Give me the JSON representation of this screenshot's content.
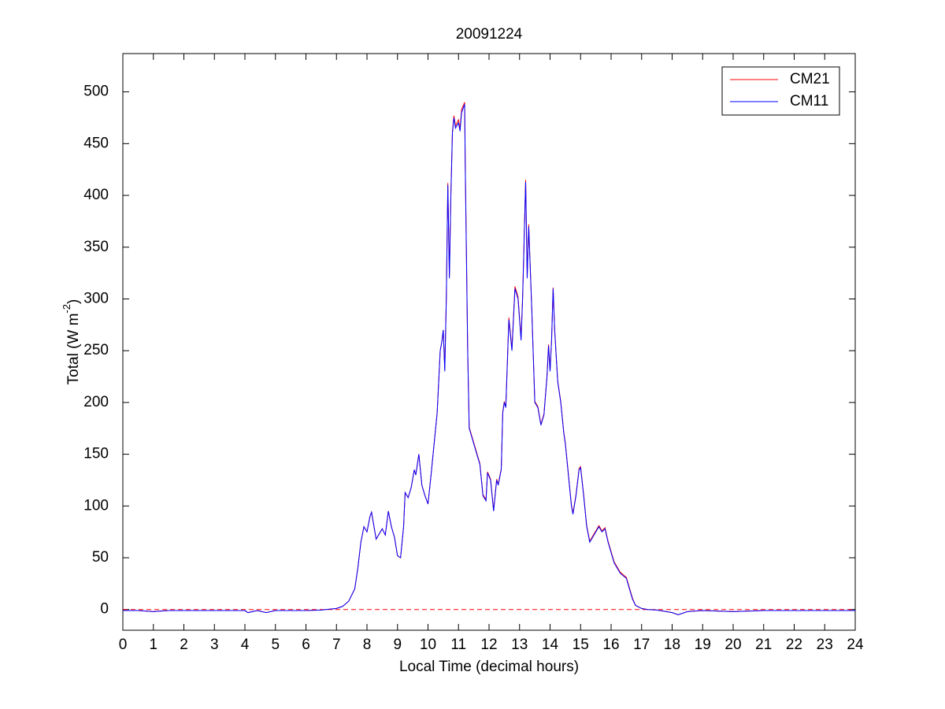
{
  "chart_data": {
    "type": "line",
    "title": "20091224",
    "xlabel": "Local Time (decimal hours)",
    "ylabel_parts": [
      "Total (W m",
      "-2",
      ")"
    ],
    "xlim": [
      0,
      24
    ],
    "xticks": [
      0,
      1,
      2,
      3,
      4,
      5,
      6,
      7,
      8,
      9,
      10,
      11,
      12,
      13,
      14,
      15,
      16,
      17,
      18,
      19,
      20,
      21,
      22,
      23,
      24
    ],
    "ylim": [
      -20,
      537
    ],
    "yticks": [
      0,
      50,
      100,
      150,
      200,
      250,
      300,
      350,
      400,
      450,
      500
    ],
    "legend": "upper right",
    "reference_line": {
      "value": 0,
      "color": "#ff0000",
      "style": "dashed"
    },
    "x": [
      0,
      0.5,
      1,
      1.5,
      2,
      3,
      4,
      4.1,
      4.4,
      4.7,
      5,
      6,
      6.5,
      7,
      7.2,
      7.4,
      7.6,
      7.7,
      7.8,
      7.9,
      8,
      8.1,
      8.15,
      8.3,
      8.5,
      8.6,
      8.7,
      8.8,
      8.9,
      9,
      9.1,
      9.2,
      9.25,
      9.35,
      9.45,
      9.55,
      9.6,
      9.7,
      9.8,
      9.9,
      10,
      10.1,
      10.2,
      10.3,
      10.4,
      10.45,
      10.5,
      10.55,
      10.6,
      10.65,
      10.7,
      10.75,
      10.8,
      10.85,
      10.9,
      11,
      11.05,
      11.1,
      11.2,
      11.22,
      11.3,
      11.35,
      11.5,
      11.6,
      11.7,
      11.8,
      11.9,
      11.95,
      12.05,
      12.15,
      12.25,
      12.3,
      12.4,
      12.45,
      12.5,
      12.55,
      12.65,
      12.75,
      12.85,
      12.95,
      13.05,
      13.1,
      13.2,
      13.25,
      13.3,
      13.4,
      13.5,
      13.6,
      13.7,
      13.8,
      13.9,
      13.95,
      14,
      14.05,
      14.1,
      14.15,
      14.25,
      14.35,
      14.45,
      14.5,
      14.6,
      14.7,
      14.75,
      14.85,
      14.95,
      15,
      15.1,
      15.2,
      15.3,
      15.4,
      15.5,
      15.6,
      15.7,
      15.8,
      15.9,
      16,
      16.1,
      16.2,
      16.3,
      16.5,
      16.6,
      16.7,
      16.8,
      17,
      17.2,
      17.5,
      18,
      18.2,
      18.5,
      19,
      20,
      21,
      22,
      23,
      24
    ],
    "series": [
      {
        "name": "CM21",
        "color": "#ff0000",
        "values": [
          -1,
          -1,
          -2,
          -1,
          -1,
          -1,
          -1,
          -3,
          -1,
          -3,
          -1,
          -1,
          -0.5,
          1,
          3,
          8,
          20,
          40,
          65,
          80,
          75,
          90,
          94,
          68,
          78,
          72,
          95,
          80,
          70,
          52,
          50,
          80,
          113,
          108,
          118,
          135,
          130,
          150,
          120,
          110,
          102,
          130,
          160,
          190,
          250,
          258,
          270,
          232,
          302,
          412,
          322,
          402,
          462,
          477,
          467,
          473,
          464,
          483,
          490,
          432,
          252,
          176,
          161,
          151,
          141,
          111,
          106,
          133,
          126,
          96,
          126,
          121,
          136,
          191,
          201,
          196,
          282,
          252,
          312,
          302,
          262,
          302,
          415,
          322,
          372,
          291,
          201,
          196,
          179,
          189,
          226,
          256,
          231,
          261,
          311,
          271,
          221,
          201,
          171,
          161,
          131,
          101,
          93,
          111,
          136,
          138,
          111,
          81,
          66,
          71,
          76,
          81,
          76,
          79,
          66,
          56,
          46,
          41,
          36,
          31,
          21,
          11,
          4,
          1,
          0,
          -0.5,
          -3,
          -5,
          -2,
          -1,
          -2,
          -1,
          -1,
          -1,
          -1
        ]
      },
      {
        "name": "CM11",
        "color": "#0000ff",
        "values": [
          -1,
          -1,
          -2,
          -1,
          -1,
          -1,
          -1,
          -3,
          -1,
          -3,
          -1,
          -1,
          -0.5,
          1,
          3,
          8,
          20,
          40,
          65,
          80,
          75,
          90,
          94,
          68,
          78,
          72,
          95,
          80,
          70,
          52,
          50,
          80,
          113,
          108,
          118,
          135,
          130,
          150,
          120,
          110,
          102,
          130,
          160,
          190,
          250,
          258,
          270,
          230,
          300,
          410,
          320,
          400,
          460,
          475,
          465,
          470,
          462,
          480,
          488,
          430,
          250,
          175,
          160,
          150,
          140,
          110,
          105,
          132,
          125,
          95,
          125,
          120,
          135,
          190,
          200,
          195,
          280,
          250,
          310,
          300,
          260,
          300,
          413,
          320,
          370,
          290,
          200,
          195,
          178,
          188,
          225,
          255,
          230,
          260,
          310,
          270,
          220,
          200,
          170,
          160,
          130,
          100,
          92,
          110,
          135,
          137,
          110,
          80,
          65,
          70,
          75,
          80,
          75,
          78,
          65,
          55,
          45,
          40,
          35,
          30,
          20,
          10,
          4,
          1,
          0,
          -0.5,
          -3,
          -5,
          -2,
          -1,
          -2,
          -1,
          -1,
          -1,
          -1
        ]
      }
    ]
  }
}
